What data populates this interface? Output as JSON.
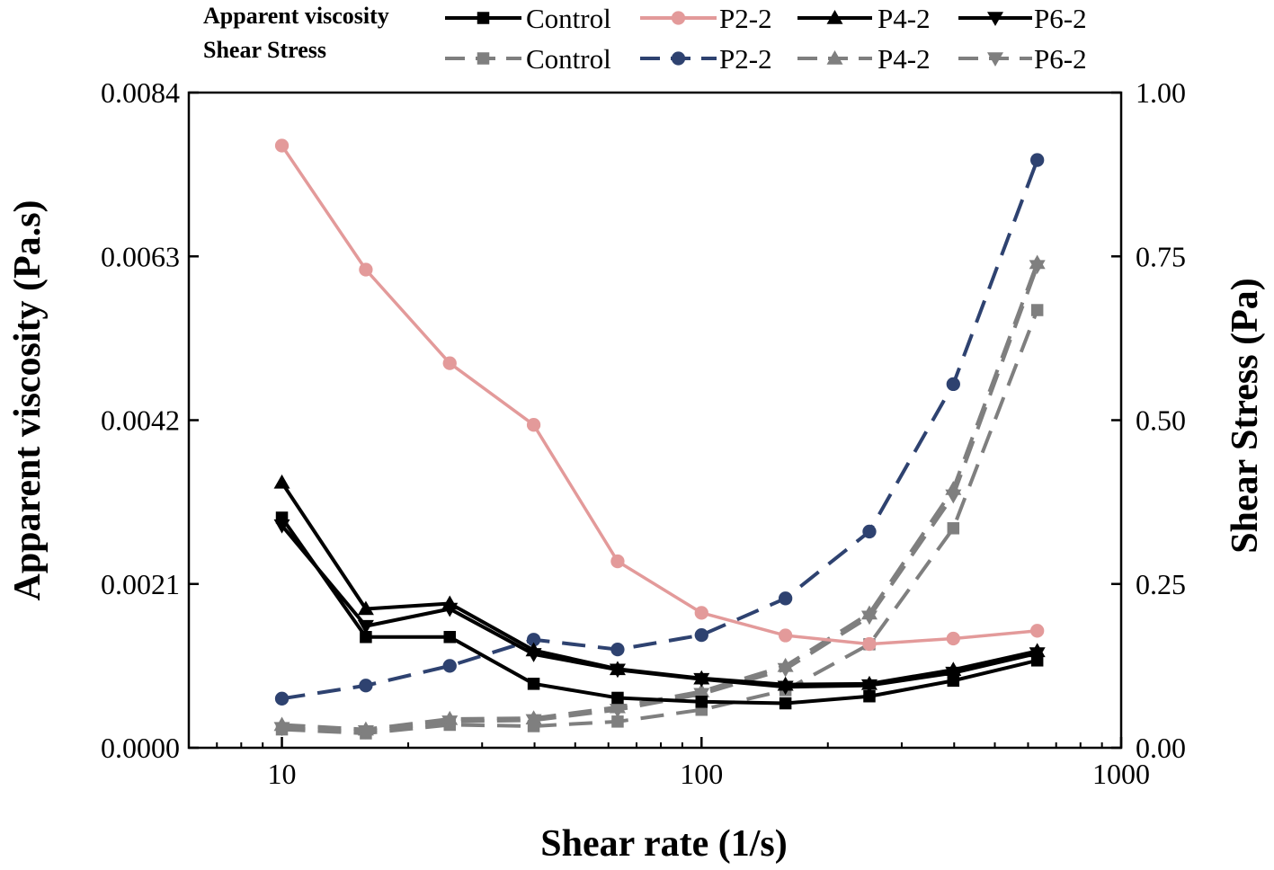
{
  "chart_data": {
    "type": "line",
    "title": "",
    "xlabel": "Shear rate (1/s)",
    "ylabel_left": "Apparent viscosity (Pa.s)",
    "ylabel_right": "Shear Stress (Pa)",
    "xscale": "log",
    "xlim": [
      6,
      1000
    ],
    "ylim_left": [
      0,
      0.0084
    ],
    "ylim_right": [
      0,
      1.0
    ],
    "xticks": [
      10,
      100,
      1000
    ],
    "xtick_labels": [
      "10",
      "100",
      "1000"
    ],
    "yticks_left": [
      0,
      0.0021,
      0.0042,
      0.0063,
      0.0084
    ],
    "ytick_labels_left": [
      "0.0000",
      "0.0021",
      "0.0042",
      "0.0063",
      "0.0084"
    ],
    "yticks_right": [
      0,
      0.25,
      0.5,
      0.75,
      1.0
    ],
    "ytick_labels_right": [
      "0.00",
      "0.25",
      "0.50",
      "0.75",
      "1.00"
    ],
    "legend_groups": [
      "Apparent viscosity",
      "Shear Stress"
    ],
    "legend_position": "top",
    "x": [
      10,
      15.85,
      25.12,
      39.81,
      63.1,
      100,
      158.5,
      251.2,
      398.1,
      631
    ],
    "series": [
      {
        "name": "Control",
        "group": "Apparent viscosity",
        "axis": "left",
        "color": "#000000",
        "dash": false,
        "marker": "square",
        "values": [
          0.00295,
          0.00142,
          0.00142,
          0.00082,
          0.00064,
          0.00059,
          0.00057,
          0.00066,
          0.00086,
          0.00112
        ]
      },
      {
        "name": "P2-2",
        "group": "Apparent viscosity",
        "axis": "left",
        "color": "#e39a9a",
        "dash": false,
        "marker": "circle",
        "values": [
          0.00772,
          0.00613,
          0.00493,
          0.00414,
          0.00239,
          0.00173,
          0.00144,
          0.00133,
          0.0014,
          0.0015
        ]
      },
      {
        "name": "P4-2",
        "group": "Apparent viscosity",
        "axis": "left",
        "color": "#000000",
        "dash": false,
        "marker": "triangle-up",
        "values": [
          0.0034,
          0.00178,
          0.00185,
          0.00125,
          0.00101,
          0.00089,
          0.00081,
          0.00082,
          0.001,
          0.00124
        ]
      },
      {
        "name": "P6-2",
        "group": "Apparent viscosity",
        "axis": "left",
        "color": "#000000",
        "dash": false,
        "marker": "triangle-down",
        "values": [
          0.00285,
          0.00156,
          0.00178,
          0.0012,
          0.001,
          0.00088,
          0.00078,
          0.0008,
          0.00096,
          0.00121
        ]
      },
      {
        "name": "Control",
        "group": "Shear Stress",
        "axis": "right",
        "color": "#7f7f7f",
        "dash": true,
        "marker": "square",
        "values": [
          0.028,
          0.022,
          0.035,
          0.033,
          0.04,
          0.058,
          0.088,
          0.158,
          0.335,
          0.668
        ]
      },
      {
        "name": "P2-2",
        "group": "Shear Stress",
        "axis": "right",
        "color": "#2e4270",
        "dash": true,
        "marker": "circle",
        "values": [
          0.075,
          0.095,
          0.125,
          0.165,
          0.15,
          0.172,
          0.228,
          0.33,
          0.555,
          0.897
        ]
      },
      {
        "name": "P4-2",
        "group": "Shear Stress",
        "axis": "right",
        "color": "#7f7f7f",
        "dash": true,
        "marker": "triangle-up",
        "values": [
          0.035,
          0.028,
          0.044,
          0.045,
          0.062,
          0.086,
          0.125,
          0.205,
          0.395,
          0.74
        ]
      },
      {
        "name": "P6-2",
        "group": "Shear Stress",
        "axis": "right",
        "color": "#7f7f7f",
        "dash": true,
        "marker": "triangle-down",
        "values": [
          0.03,
          0.025,
          0.04,
          0.042,
          0.058,
          0.082,
          0.12,
          0.2,
          0.385,
          0.735
        ]
      }
    ]
  }
}
